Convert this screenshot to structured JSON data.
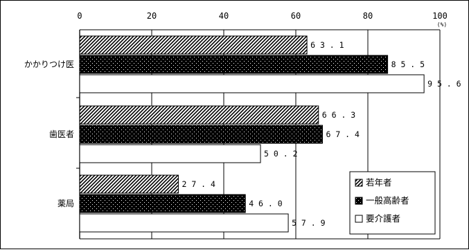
{
  "chart_data": {
    "type": "bar",
    "orientation": "horizontal",
    "categories": [
      "かかりつけ医",
      "歯医者",
      "薬局"
    ],
    "series": [
      {
        "name": "若年者",
        "values": [
          63.1,
          66.3,
          27.4
        ],
        "pattern": "diagonal-hatch"
      },
      {
        "name": "一般高齢者",
        "values": [
          85.5,
          67.4,
          46.0
        ],
        "pattern": "dotted-black"
      },
      {
        "name": "要介護者",
        "values": [
          95.6,
          50.2,
          57.9
        ],
        "pattern": "white"
      }
    ],
    "xlim": [
      0,
      100
    ],
    "xticks": [
      0,
      20,
      40,
      60,
      80,
      100
    ],
    "unit": "(%)",
    "grid": "vertical",
    "legend_position": "bottom-right",
    "value_label_format": "spaced-one-decimal"
  }
}
